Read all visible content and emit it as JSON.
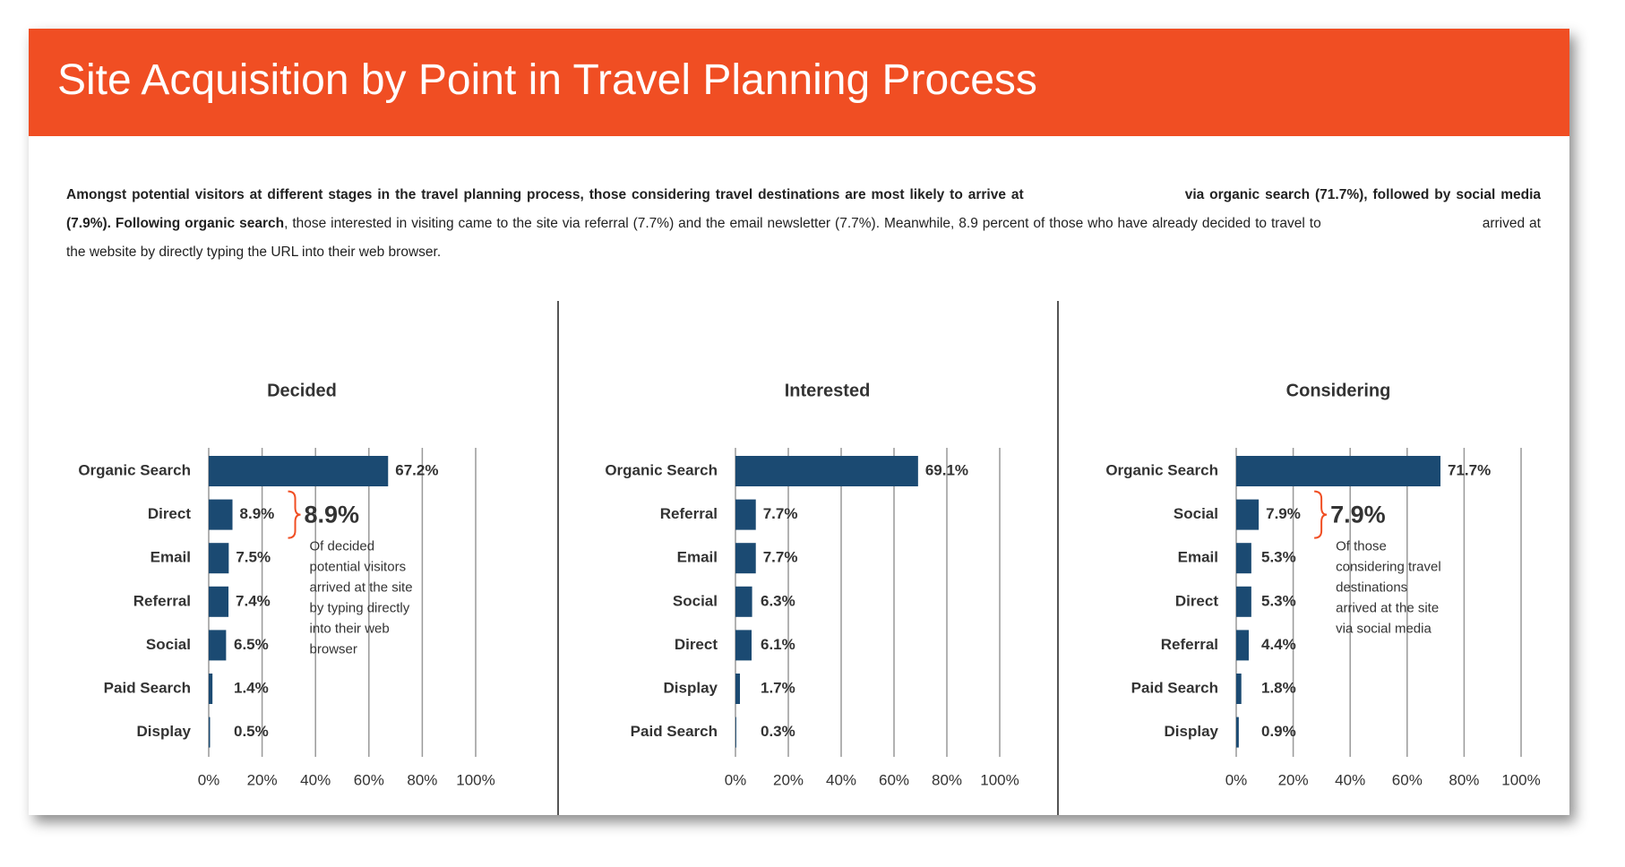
{
  "slide": {
    "title": "Site Acquisition by Point in Travel Planning Process",
    "text": [
      "Amongst potential visitors at different stages in the travel planning process, those considering travel destinations are most likely to arrive at",
      "via organic search (71.7%), followed by social media (7.9%). Following organic search",
      ", those interested in visiting came to the site via referral (7.7%) and the email newsletter (7.7%). Meanwhile, 8.9 percent of those who have already decided to travel to",
      "arrived at the website by directly typing the URL into their web browser."
    ]
  },
  "chart_data": [
    {
      "type": "hbar",
      "title": "Decided",
      "color": "#1b4a72",
      "grid": true,
      "categories": [
        "Organic Search",
        "Direct",
        "Email",
        "Referral",
        "Social",
        "Paid Search",
        "Display"
      ],
      "values": [
        67.2,
        8.9,
        7.5,
        7.4,
        6.5,
        1.4,
        0.5
      ],
      "value_labels": [
        "67.2%",
        "8.9%",
        "7.5%",
        "7.4%",
        "6.5%",
        "1.4%",
        "0.5%"
      ],
      "xlim": [
        0,
        100
      ],
      "xticks": [
        {
          "value": 0,
          "label": "0%"
        },
        {
          "value": 20,
          "label": "20%"
        },
        {
          "value": 40,
          "label": "40%"
        },
        {
          "value": 60,
          "label": "60%"
        },
        {
          "value": 80,
          "label": "80%"
        },
        {
          "value": 100,
          "label": "100%"
        }
      ],
      "annotation": {
        "label": "8.9%",
        "color": "#f04e23",
        "lines": [
          "Of decided",
          "potential visitors",
          "arrived at the site",
          "by typing directly",
          "into their web",
          "browser"
        ]
      }
    },
    {
      "type": "hbar",
      "title": "Interested",
      "color": "#1b4a72",
      "grid": true,
      "categories": [
        "Organic Search",
        "Referral",
        "Email",
        "Social",
        "Direct",
        "Display",
        "Paid Search"
      ],
      "values": [
        69.1,
        7.7,
        7.7,
        6.3,
        6.1,
        1.7,
        0.3
      ],
      "value_labels": [
        "69.1%",
        "7.7%",
        "7.7%",
        "6.3%",
        "6.1%",
        "1.7%",
        "0.3%"
      ],
      "xlim": [
        0,
        100
      ],
      "xticks": [
        {
          "value": 0,
          "label": "0%"
        },
        {
          "value": 20,
          "label": "20%"
        },
        {
          "value": 40,
          "label": "40%"
        },
        {
          "value": 60,
          "label": "60%"
        },
        {
          "value": 80,
          "label": "80%"
        },
        {
          "value": 100,
          "label": "100%"
        }
      ]
    },
    {
      "type": "hbar",
      "title": "Considering",
      "color": "#1b4a72",
      "grid": true,
      "categories": [
        "Organic Search",
        "Social",
        "Email",
        "Direct",
        "Referral",
        "Paid Search",
        "Display"
      ],
      "values": [
        71.7,
        7.9,
        5.3,
        5.3,
        4.4,
        1.8,
        0.9
      ],
      "value_labels": [
        "71.7%",
        "7.9%",
        "5.3%",
        "5.3%",
        "4.4%",
        "1.8%",
        "0.9%"
      ],
      "xlim": [
        0,
        100
      ],
      "xticks": [
        {
          "value": 0,
          "label": "0%"
        },
        {
          "value": 20,
          "label": "20%"
        },
        {
          "value": 40,
          "label": "40%"
        },
        {
          "value": 60,
          "label": "60%"
        },
        {
          "value": 80,
          "label": "80%"
        },
        {
          "value": 100,
          "label": "100%"
        }
      ],
      "annotation": {
        "label": "7.9%",
        "color": "#f04e23",
        "lines": [
          "Of those",
          "considering travel",
          "destinations",
          "arrived at the site",
          "via social media"
        ]
      }
    }
  ]
}
